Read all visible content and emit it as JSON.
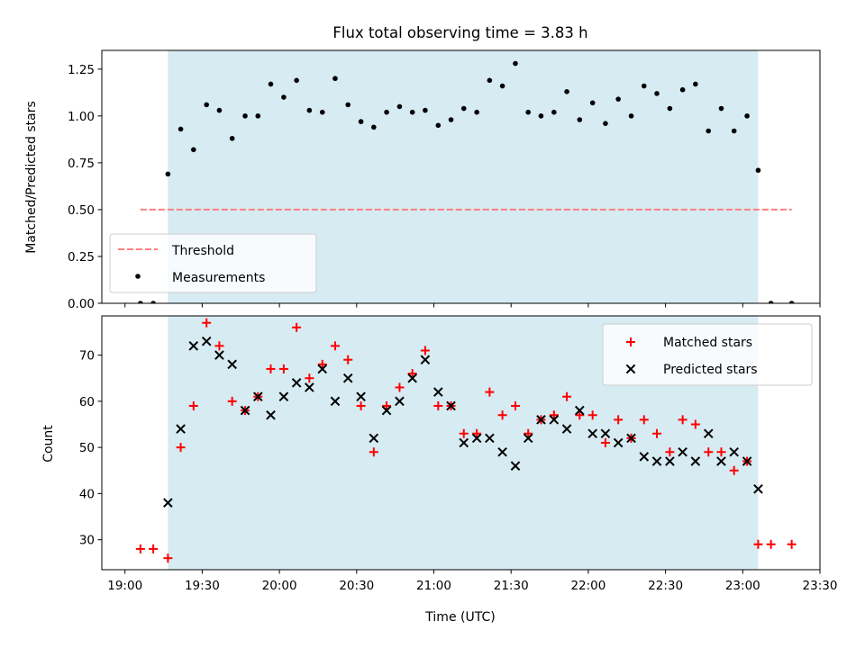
{
  "chart_data": [
    {
      "type": "scatter",
      "panel": "top",
      "title": "Flux total observing time = 3.83 h",
      "ylabel": "Matched/Predicted stars",
      "xlabel": "",
      "ylim": [
        0,
        1.35
      ],
      "yticks": [
        0,
        0.25,
        0.5,
        0.75,
        1.0,
        1.25
      ],
      "ytick_labels": [
        "0.00",
        "0.25",
        "0.50",
        "0.75",
        "1.00",
        "1.25"
      ],
      "shaded_span": {
        "x_start": 19.278,
        "x_end": 23.1,
        "color": "#add8e6"
      },
      "threshold": {
        "name": "Threshold",
        "y": 0.5,
        "x_start": 19.1,
        "x_end": 23.317,
        "color": "#ff7f7f"
      },
      "legend": {
        "placement": "lower-left",
        "entries": [
          "Threshold",
          "Measurements"
        ]
      },
      "series": [
        {
          "name": "Measurements",
          "marker": "dot",
          "color": "#000000",
          "x": [
            19.1,
            19.183,
            19.278,
            19.361,
            19.444,
            19.528,
            19.611,
            19.694,
            19.778,
            19.861,
            19.944,
            20.028,
            20.111,
            20.194,
            20.278,
            20.361,
            20.444,
            20.528,
            20.611,
            20.694,
            20.778,
            20.861,
            20.944,
            21.028,
            21.111,
            21.194,
            21.278,
            21.361,
            21.444,
            21.528,
            21.611,
            21.694,
            21.778,
            21.861,
            21.944,
            22.028,
            22.111,
            22.194,
            22.278,
            22.361,
            22.444,
            22.528,
            22.611,
            22.694,
            22.778,
            22.861,
            22.944,
            23.028,
            23.1,
            23.183,
            23.317
          ],
          "y": [
            0,
            0,
            0.69,
            0.93,
            0.82,
            1.06,
            1.03,
            0.88,
            1.0,
            1.0,
            1.17,
            1.1,
            1.19,
            1.03,
            1.02,
            1.2,
            1.06,
            0.97,
            0.94,
            1.02,
            1.05,
            1.02,
            1.03,
            0.95,
            0.98,
            1.04,
            1.02,
            1.19,
            1.16,
            1.28,
            1.02,
            1.0,
            1.02,
            1.13,
            0.98,
            1.07,
            0.96,
            1.09,
            1.0,
            1.16,
            1.12,
            1.04,
            1.14,
            1.17,
            0.92,
            1.04,
            0.92,
            1.0,
            0.71,
            0,
            0
          ]
        }
      ],
      "xticks": [
        19.0,
        19.5,
        20.0,
        20.5,
        21.0,
        21.5,
        22.0,
        22.5,
        23.0,
        23.5
      ],
      "xlim": [
        18.85,
        23.5
      ]
    },
    {
      "type": "scatter",
      "panel": "bottom",
      "xlabel": "Time (UTC)",
      "ylabel": "Count",
      "xlim": [
        18.85,
        23.5
      ],
      "ylim": [
        23.5,
        78.5
      ],
      "yticks": [
        30,
        40,
        50,
        60,
        70
      ],
      "xticks": [
        19.0,
        19.5,
        20.0,
        20.5,
        21.0,
        21.5,
        22.0,
        22.5,
        23.0,
        23.5
      ],
      "xtick_labels": [
        "19:00",
        "19:30",
        "20:00",
        "20:30",
        "21:00",
        "21:30",
        "22:00",
        "22:30",
        "23:00",
        "23:30"
      ],
      "shaded_span": {
        "x_start": 19.278,
        "x_end": 23.1,
        "color": "#add8e6"
      },
      "legend": {
        "placement": "top-right",
        "entries": [
          "Matched stars",
          "Predicted stars"
        ]
      },
      "series": [
        {
          "name": "Matched stars",
          "marker": "plus",
          "color": "#ff0000",
          "x": [
            19.1,
            19.183,
            19.278,
            19.361,
            19.444,
            19.528,
            19.611,
            19.694,
            19.778,
            19.861,
            19.944,
            20.028,
            20.111,
            20.194,
            20.278,
            20.361,
            20.444,
            20.528,
            20.611,
            20.694,
            20.778,
            20.861,
            20.944,
            21.028,
            21.111,
            21.194,
            21.278,
            21.361,
            21.444,
            21.528,
            21.611,
            21.694,
            21.778,
            21.861,
            21.944,
            22.028,
            22.111,
            22.194,
            22.278,
            22.361,
            22.444,
            22.528,
            22.611,
            22.694,
            22.778,
            22.861,
            22.944,
            23.028,
            23.1,
            23.183,
            23.317
          ],
          "y": [
            28,
            28,
            26,
            50,
            59,
            77,
            72,
            60,
            58,
            61,
            67,
            67,
            76,
            65,
            68,
            72,
            69,
            59,
            49,
            59,
            63,
            66,
            71,
            59,
            59,
            53,
            53,
            62,
            57,
            59,
            53,
            56,
            57,
            61,
            57,
            57,
            51,
            56,
            52,
            56,
            53,
            49,
            56,
            55,
            49,
            49,
            45,
            47,
            29,
            29,
            29
          ]
        },
        {
          "name": "Predicted stars",
          "marker": "x",
          "color": "#000000",
          "x": [
            19.278,
            19.361,
            19.444,
            19.528,
            19.611,
            19.694,
            19.778,
            19.861,
            19.944,
            20.028,
            20.111,
            20.194,
            20.278,
            20.361,
            20.444,
            20.528,
            20.611,
            20.694,
            20.778,
            20.861,
            20.944,
            21.028,
            21.111,
            21.194,
            21.278,
            21.361,
            21.444,
            21.528,
            21.611,
            21.694,
            21.778,
            21.861,
            21.944,
            22.028,
            22.111,
            22.194,
            22.278,
            22.361,
            22.444,
            22.528,
            22.611,
            22.694,
            22.778,
            22.861,
            22.944,
            23.028,
            23.1
          ],
          "y": [
            38,
            54,
            72,
            73,
            70,
            68,
            58,
            61,
            57,
            61,
            64,
            63,
            67,
            60,
            65,
            61,
            52,
            58,
            60,
            65,
            69,
            62,
            59,
            51,
            52,
            52,
            49,
            46,
            52,
            56,
            56,
            54,
            58,
            53,
            53,
            51,
            52,
            48,
            47,
            47,
            49,
            47,
            53,
            47,
            49,
            47,
            41
          ]
        }
      ]
    }
  ]
}
